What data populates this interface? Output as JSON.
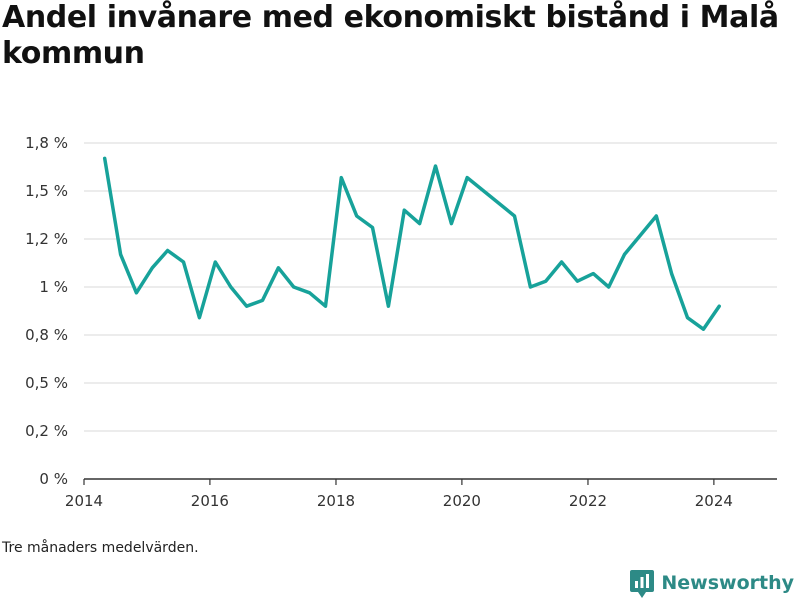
{
  "header": {
    "title": "Andel invånare med ekonomiskt bistånd i Malå kommun"
  },
  "footer": {
    "note": "Tre månaders medelvärden.",
    "brand": "Newsworthy",
    "brand_icon": "newsworthy-logo-icon"
  },
  "colors": {
    "line": "#17a29a",
    "brand": "#2d8a86",
    "grid": "#d9d9d9",
    "axis": "#333333"
  },
  "chart_data": {
    "type": "line",
    "title": "Andel invånare med ekonomiskt bistånd i Malå kommun",
    "xlabel": "",
    "ylabel": "",
    "x_ticks": [
      "2014",
      "2016",
      "2018",
      "2020",
      "2022",
      "2024"
    ],
    "y_ticks": [
      "0 %",
      "0,2 %",
      "0,5 %",
      "0,8 %",
      "1 %",
      "1,2 %",
      "1,5 %",
      "1,8 %"
    ],
    "ylim": [
      0,
      1.75
    ],
    "xlim": [
      "2014-01-01",
      "2025-01-01"
    ],
    "grid": true,
    "legend": "none",
    "series": [
      {
        "x": [
          "2014-05-01",
          "2014-08-01",
          "2014-11-01",
          "2015-02-01",
          "2015-05-01",
          "2015-08-01",
          "2015-11-01",
          "2016-02-01",
          "2016-05-01",
          "2016-08-01",
          "2016-11-01",
          "2017-02-01",
          "2017-05-01",
          "2017-08-01",
          "2017-11-01",
          "2018-02-01",
          "2018-05-01",
          "2018-08-01",
          "2018-11-01",
          "2019-02-01",
          "2019-05-01",
          "2019-08-01",
          "2019-11-01",
          "2020-02-01",
          "2020-11-01",
          "2021-02-01",
          "2021-05-01",
          "2021-08-01",
          "2021-11-01",
          "2022-02-01",
          "2022-05-01",
          "2022-08-01",
          "2023-02-01",
          "2023-05-01",
          "2023-08-01",
          "2023-11-01",
          "2024-02-01"
        ],
        "values": [
          1.67,
          1.17,
          0.97,
          1.1,
          1.19,
          1.13,
          0.84,
          1.13,
          1.0,
          0.9,
          0.93,
          1.1,
          1.0,
          0.97,
          0.9,
          1.57,
          1.37,
          1.31,
          0.9,
          1.4,
          1.33,
          1.63,
          1.33,
          1.57,
          1.37,
          1.0,
          1.03,
          1.13,
          1.03,
          1.07,
          1.0,
          1.17,
          1.37,
          1.07,
          0.84,
          0.78,
          0.9
        ]
      }
    ]
  }
}
